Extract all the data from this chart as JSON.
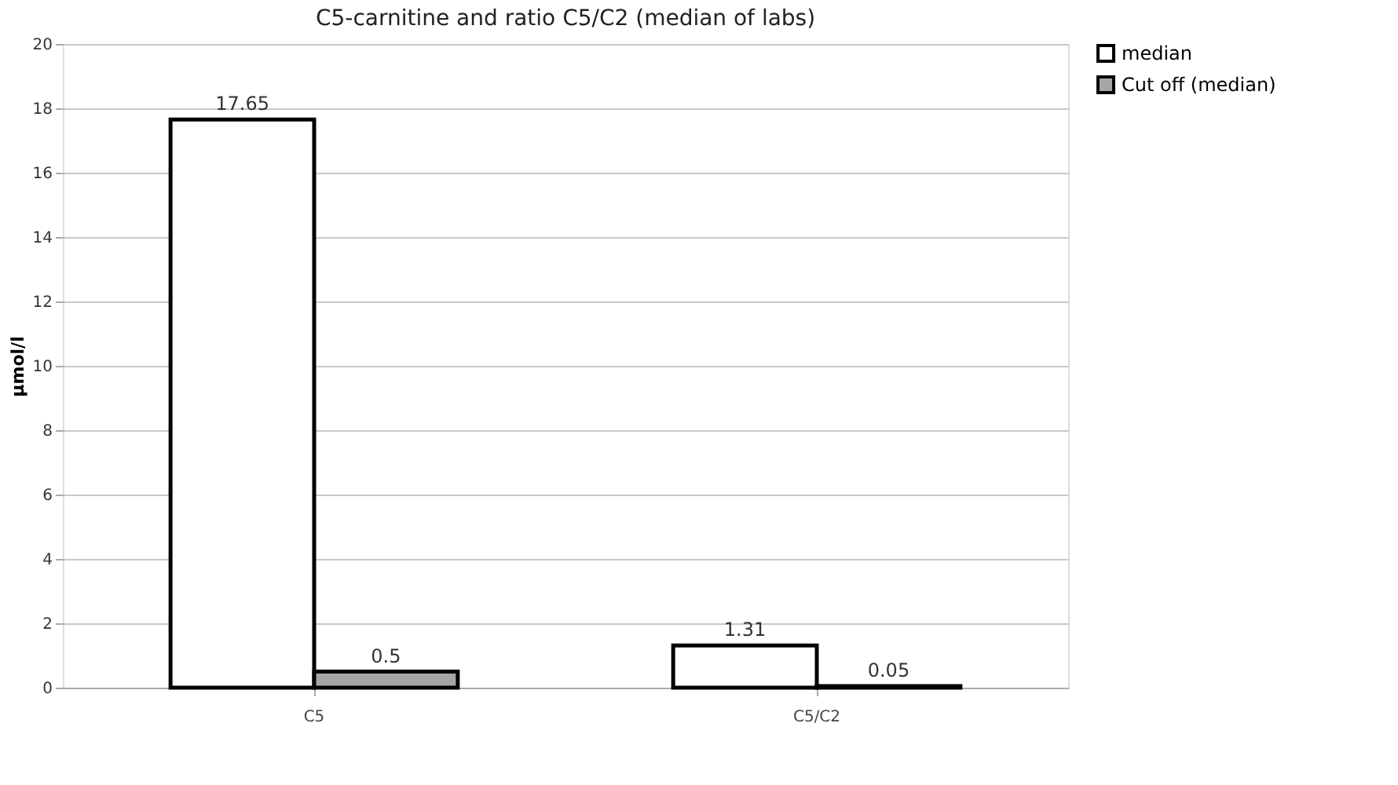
{
  "chart_data": {
    "type": "bar",
    "title": "C5-carnitine and ratio C5/C2 (median of labs)",
    "ylabel": "µmol/l",
    "categories": [
      "C5",
      "C5/C2"
    ],
    "series": [
      {
        "name": "median",
        "color": "#ffffff",
        "values": [
          17.65,
          1.31
        ]
      },
      {
        "name": "Cut off (median)",
        "color": "#a6a6a6",
        "values": [
          0.5,
          0.05
        ]
      }
    ],
    "ylim": [
      0,
      20
    ],
    "yticks": [
      0,
      2,
      4,
      6,
      8,
      10,
      12,
      14,
      16,
      18,
      20
    ],
    "grid": "y",
    "legend": "right",
    "data_labels": true
  }
}
